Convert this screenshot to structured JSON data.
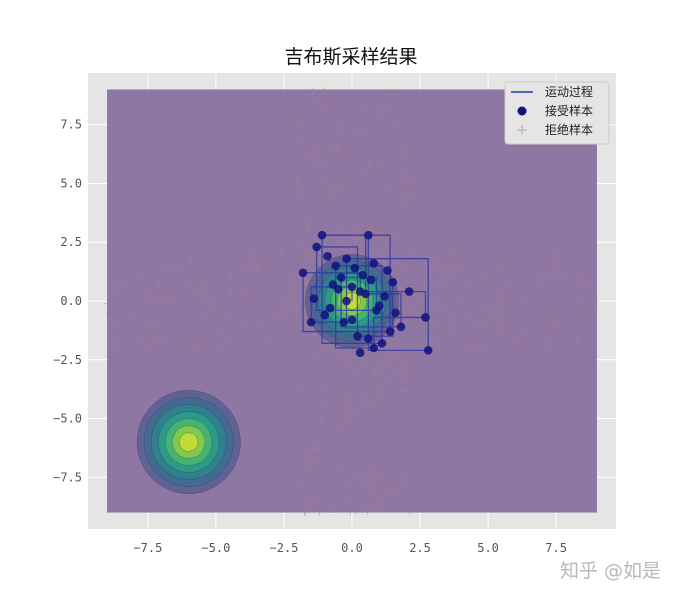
{
  "chart_data": {
    "type": "scatter",
    "title": "吉布斯采样结果",
    "xlabel": "",
    "ylabel": "",
    "xlim": [
      -9.7,
      9.7
    ],
    "ylim": [
      -9.7,
      9.7
    ],
    "xticks": [
      -7.5,
      -5.0,
      -2.5,
      0.0,
      2.5,
      5.0,
      7.5
    ],
    "yticks": [
      -7.5,
      -5.0,
      -2.5,
      0.0,
      2.5,
      5.0,
      7.5
    ],
    "xtick_labels": [
      "−7.5",
      "−5.0",
      "−2.5",
      "0.0",
      "2.5",
      "5.0",
      "7.5"
    ],
    "ytick_labels": [
      "−7.5",
      "−5.0",
      "−2.5",
      "0.0",
      "2.5",
      "5.0",
      "7.5"
    ],
    "grid": true,
    "legend_position": "top-right",
    "background_color": "#e5e5e5",
    "sample_region": {
      "x": [
        -9,
        9
      ],
      "y": [
        -9,
        9
      ],
      "color": "#8e77a3"
    },
    "density_contours": [
      {
        "center": [
          0.0,
          0.0
        ],
        "sigma": 0.9
      },
      {
        "center": [
          -6.0,
          -6.0
        ],
        "sigma": 1.0
      }
    ],
    "series": [
      {
        "name": "运动过程",
        "kind": "line",
        "color": "#2a34a6",
        "x": [
          0.0,
          0.0,
          -1.5,
          -1.5,
          -0.2,
          -0.2,
          2.8,
          2.8,
          0.6,
          0.6,
          1.4,
          1.4,
          -1.8,
          -1.8,
          0.3,
          0.3,
          2.7,
          2.7,
          0.8,
          0.8,
          -0.6,
          -0.6,
          1.1,
          1.1,
          -1.1,
          -1.1,
          0.5,
          0.5,
          1.8,
          1.8,
          -0.4,
          -0.4,
          0.9,
          0.9,
          -1.3,
          -1.3,
          0.2,
          0.2,
          1.5,
          1.5
        ],
        "y": [
          0.0,
          0.6,
          0.6,
          -0.9,
          -0.9,
          1.8,
          1.8,
          -2.1,
          -2.1,
          2.8,
          2.8,
          -1.3,
          -1.3,
          1.2,
          1.2,
          0.4,
          0.4,
          -0.7,
          -0.7,
          -2.0,
          -2.0,
          1.5,
          1.5,
          -1.8,
          -1.8,
          2.8,
          2.8,
          0.3,
          0.3,
          -1.1,
          -1.1,
          1.0,
          1.0,
          -0.4,
          -0.4,
          2.3,
          2.3,
          -1.5,
          -1.5,
          0.8
        ]
      },
      {
        "name": "接受样本",
        "kind": "scatter",
        "color": "#10107e",
        "x": [
          0.0,
          -1.5,
          -0.2,
          2.8,
          0.6,
          1.4,
          -1.8,
          0.3,
          2.7,
          0.8,
          -0.6,
          1.1,
          -1.1,
          0.5,
          1.8,
          -0.4,
          0.9,
          -1.3,
          0.2,
          1.5,
          -0.8,
          0.4,
          1.2,
          -0.3,
          0.7,
          -1.0,
          0.1,
          1.0,
          -0.5,
          0.6,
          -0.2,
          0.8,
          1.6,
          -1.4,
          0.3,
          -0.7,
          1.3,
          0.0,
          -0.9,
          2.1
        ],
        "y": [
          0.6,
          -0.9,
          1.8,
          -2.1,
          2.8,
          -1.3,
          1.2,
          0.4,
          -0.7,
          -2.0,
          1.5,
          -1.8,
          2.8,
          0.3,
          -1.1,
          1.0,
          -0.4,
          2.3,
          -1.5,
          0.8,
          -0.3,
          1.1,
          0.2,
          -0.9,
          0.9,
          -0.6,
          1.4,
          -0.2,
          0.5,
          -1.6,
          0.0,
          1.6,
          -0.5,
          0.1,
          -2.2,
          0.7,
          1.3,
          -0.8,
          1.9,
          0.4
        ]
      },
      {
        "name": "拒绝样本",
        "kind": "scatter",
        "marker": "+",
        "color": "#a67a94",
        "distribution": "horizontal band y∈[-2.2,2.2] across x∈[-9,9] and vertical band x∈[-2.2,2.2] across y∈[-9,9]",
        "x": [],
        "y": []
      }
    ],
    "annotations": []
  },
  "watermark": "知乎 @如是"
}
